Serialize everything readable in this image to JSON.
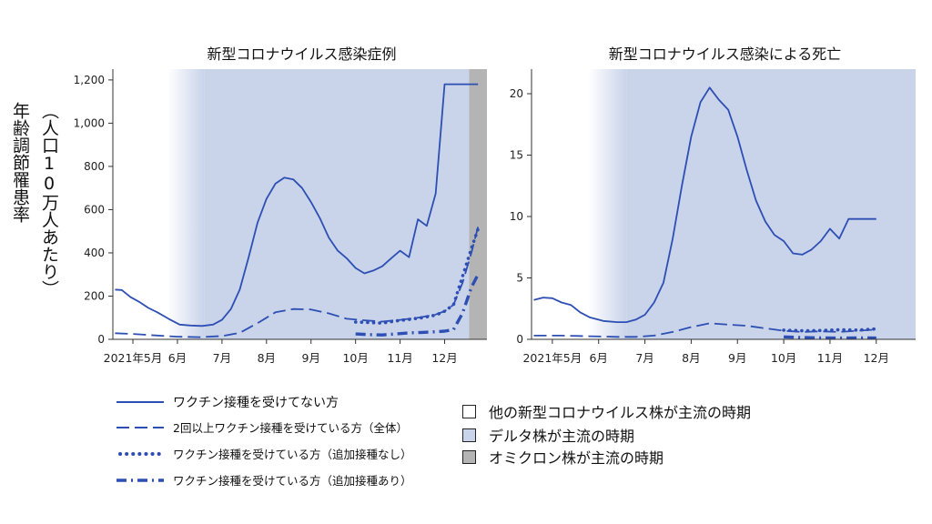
{
  "y_axis_label": [
    "年齢調節罹患率",
    "（人口10万人あたり）"
  ],
  "colors": {
    "line": "#2d4fb3",
    "delta_fill": "#c9d3ea",
    "omicron_fill": "#b4b4b4",
    "other_fill": "#ffffff"
  },
  "chart_data": [
    {
      "type": "line",
      "title": "新型コロナウイルス感染症例",
      "x_ticks": [
        "2021年5月",
        "6月",
        "7月",
        "8月",
        "9月",
        "10月",
        "11月",
        "12月"
      ],
      "y_ticks": [
        "0",
        "200",
        "400",
        "600",
        "800",
        "1,000",
        "1,200"
      ],
      "ylim": [
        0,
        1250
      ],
      "xlim": [
        4.55,
        12.95
      ],
      "periods": [
        {
          "name": "other",
          "from": 4.55,
          "to": 6.6,
          "gradient": true
        },
        {
          "name": "delta",
          "from": 6.6,
          "to": 12.55
        },
        {
          "name": "omicron",
          "from": 12.55,
          "to": 12.95
        }
      ],
      "series": [
        {
          "name": "ワクチン接種を受けてない方",
          "style": "solid",
          "x": [
            4.6,
            4.75,
            4.95,
            5.15,
            5.35,
            5.55,
            5.8,
            6.05,
            6.3,
            6.55,
            6.8,
            7.0,
            7.2,
            7.4,
            7.6,
            7.8,
            8.0,
            8.2,
            8.4,
            8.6,
            8.8,
            9.0,
            9.2,
            9.4,
            9.6,
            9.8,
            10.0,
            10.2,
            10.4,
            10.6,
            10.8,
            11.0,
            11.2,
            11.4,
            11.6,
            11.8,
            12.0,
            12.15,
            12.3,
            12.5,
            12.75
          ],
          "y": [
            230,
            228,
            195,
            172,
            145,
            125,
            95,
            68,
            64,
            62,
            68,
            90,
            140,
            230,
            380,
            540,
            650,
            720,
            748,
            740,
            700,
            635,
            560,
            470,
            410,
            375,
            330,
            305,
            318,
            338,
            375,
            410,
            380,
            555,
            525,
            675,
            1180,
            1180,
            1180,
            1180,
            1180
          ]
        },
        {
          "name": "2回以上ワクチン接種を受けている方（全体）",
          "style": "dashed",
          "x": [
            4.6,
            5.0,
            5.5,
            6.0,
            6.5,
            7.0,
            7.4,
            7.8,
            8.2,
            8.6,
            9.0,
            9.4,
            9.8,
            10.2,
            10.6,
            11.0,
            11.4,
            11.8,
            12.0,
            12.2,
            12.4,
            12.6,
            12.75
          ],
          "y": [
            28,
            25,
            18,
            12,
            10,
            15,
            30,
            75,
            125,
            140,
            138,
            120,
            95,
            88,
            82,
            90,
            100,
            115,
            130,
            160,
            260,
            400,
            520
          ]
        },
        {
          "name": "ワクチン接種を受けている方（追加接種なし）",
          "style": "dotted",
          "x": [
            10.0,
            10.3,
            10.6,
            10.9,
            11.2,
            11.5,
            11.8,
            12.0,
            12.2,
            12.4,
            12.6,
            12.75
          ],
          "y": [
            80,
            78,
            75,
            85,
            92,
            100,
            112,
            130,
            160,
            290,
            420,
            510
          ]
        },
        {
          "name": "ワクチン接種を受けている方（追加接種あり）",
          "style": "dashdot",
          "x": [
            10.0,
            10.3,
            10.6,
            10.9,
            11.2,
            11.5,
            11.8,
            12.0,
            12.2,
            12.4,
            12.6,
            12.75
          ],
          "y": [
            25,
            22,
            20,
            25,
            30,
            32,
            35,
            38,
            45,
            120,
            240,
            300
          ]
        }
      ]
    },
    {
      "type": "line",
      "title": "新型コロナウイルス感染による死亡",
      "x_ticks": [
        "2021年5月",
        "6月",
        "7月",
        "8月",
        "9月",
        "10月",
        "11月",
        "12月"
      ],
      "y_ticks": [
        "0",
        "5",
        "10",
        "15",
        "20"
      ],
      "ylim": [
        0,
        22
      ],
      "xlim": [
        4.55,
        12.85
      ],
      "periods": [
        {
          "name": "other",
          "from": 4.55,
          "to": 6.6,
          "gradient": true
        },
        {
          "name": "delta",
          "from": 6.6,
          "to": 12.85
        }
      ],
      "series": [
        {
          "name": "ワクチン接種を受けてない方",
          "style": "solid",
          "x": [
            4.6,
            4.8,
            5.0,
            5.2,
            5.4,
            5.6,
            5.8,
            6.1,
            6.4,
            6.6,
            6.8,
            7.0,
            7.2,
            7.4,
            7.6,
            7.8,
            8.0,
            8.2,
            8.4,
            8.6,
            8.8,
            9.0,
            9.2,
            9.4,
            9.6,
            9.8,
            10.0,
            10.2,
            10.4,
            10.6,
            10.8,
            11.0,
            11.2,
            11.4,
            11.6,
            11.8,
            12.0
          ],
          "y": [
            3.2,
            3.4,
            3.35,
            3.0,
            2.8,
            2.2,
            1.8,
            1.5,
            1.4,
            1.4,
            1.6,
            2.0,
            3.0,
            4.6,
            8.2,
            12.5,
            16.5,
            19.3,
            20.5,
            19.5,
            18.7,
            16.5,
            13.8,
            11.3,
            9.6,
            8.5,
            8.0,
            7.0,
            6.9,
            7.3,
            8.0,
            9.0,
            8.2,
            9.8,
            9.8,
            9.8,
            9.8
          ]
        },
        {
          "name": "2回以上ワクチン接種を受けている方（全体）",
          "style": "dashed",
          "x": [
            4.6,
            5.2,
            5.8,
            6.4,
            6.8,
            7.2,
            7.6,
            8.0,
            8.4,
            8.8,
            9.2,
            9.6,
            10.0,
            10.4,
            10.8,
            11.2,
            11.6,
            12.0
          ],
          "y": [
            0.3,
            0.3,
            0.25,
            0.2,
            0.2,
            0.3,
            0.6,
            1.0,
            1.3,
            1.2,
            1.1,
            0.9,
            0.7,
            0.6,
            0.65,
            0.6,
            0.7,
            0.8
          ]
        },
        {
          "name": "ワクチン接種を受けている方（追加接種なし）",
          "style": "dotted",
          "x": [
            10.0,
            10.4,
            10.8,
            11.2,
            11.6,
            12.0
          ],
          "y": [
            0.75,
            0.7,
            0.72,
            0.78,
            0.75,
            0.85
          ]
        },
        {
          "name": "ワクチン接種を受けている方（追加接種あり）",
          "style": "dashdot",
          "x": [
            10.0,
            10.4,
            10.8,
            11.2,
            11.6,
            12.0
          ],
          "y": [
            0.2,
            0.15,
            0.12,
            0.1,
            0.12,
            0.1
          ]
        }
      ]
    }
  ],
  "legend": {
    "lines": [
      {
        "label": "ワクチン接種を受けてない方",
        "style": "solid"
      },
      {
        "label": "2回以上ワクチン接種を受けている方（全体）",
        "style": "dashed"
      },
      {
        "label": "ワクチン接種を受けている方（追加接種なし）",
        "style": "dotted"
      },
      {
        "label": "ワクチン接種を受けている方（追加接種あり）",
        "style": "dashdot"
      }
    ],
    "periods": [
      {
        "label": "他の新型コロナウイルス株が主流の時期",
        "swatch": "other_fill"
      },
      {
        "label": "デルタ株が主流の時期",
        "swatch": "delta_fill"
      },
      {
        "label": "オミクロン株が主流の時期",
        "swatch": "omicron_fill"
      }
    ]
  }
}
